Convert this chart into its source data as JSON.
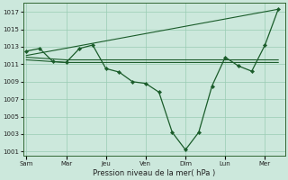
{
  "background_color": "#cce8dc",
  "plot_bg_color": "#cce8dc",
  "grid_color": "#99ccb3",
  "line_color": "#1a5c2a",
  "xlabel": "Pression niveau de la mer( hPa )",
  "ylim": [
    1000.5,
    1018.0
  ],
  "yticks": [
    1001,
    1003,
    1005,
    1007,
    1009,
    1011,
    1013,
    1015,
    1017
  ],
  "xtick_labels": [
    "Sam",
    "Mar",
    "Jeu",
    "Ven",
    "Dim",
    "Lun",
    "Mer"
  ],
  "xtick_positions": [
    0,
    12,
    24,
    36,
    48,
    60,
    72
  ],
  "xlim": [
    -1,
    78
  ],
  "series1": {
    "x": [
      0,
      4,
      8,
      12,
      16,
      20,
      24,
      28,
      32,
      36,
      40,
      44,
      48,
      52,
      56,
      60,
      64,
      68,
      72,
      76
    ],
    "y": [
      1012.5,
      1012.8,
      1011.3,
      1011.2,
      1012.8,
      1013.2,
      1010.5,
      1010.1,
      1009.0,
      1008.8,
      1007.8,
      1003.2,
      1001.2,
      1003.2,
      1008.5,
      1011.8,
      1010.8,
      1010.2,
      1013.2,
      1017.3
    ]
  },
  "series2": {
    "x": [
      0,
      76
    ],
    "y": [
      1012.0,
      1017.3
    ]
  },
  "series3": {
    "x": [
      0,
      12,
      24,
      36,
      48,
      60,
      72,
      76
    ],
    "y": [
      1011.8,
      1011.5,
      1011.5,
      1011.5,
      1011.5,
      1011.5,
      1011.5,
      1011.5
    ]
  },
  "series4": {
    "x": [
      0,
      12,
      24,
      36,
      48,
      60,
      72,
      76
    ],
    "y": [
      1011.5,
      1011.2,
      1011.2,
      1011.2,
      1011.2,
      1011.2,
      1011.2,
      1011.2
    ]
  }
}
